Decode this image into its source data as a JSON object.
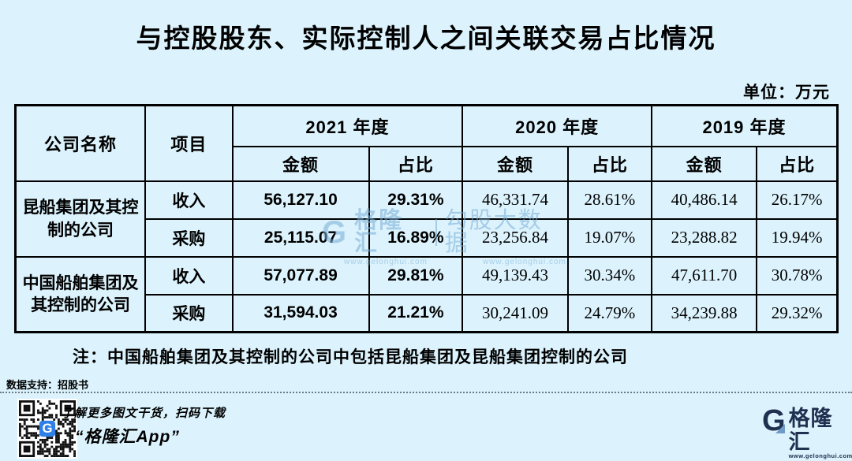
{
  "title": "与控股股东、实际控制人之间关联交易占比情况",
  "unit_label": "单位：万元",
  "table": {
    "header": {
      "company": "公司名称",
      "item": "项目",
      "years": [
        "2021 年度",
        "2020 年度",
        "2019 年度"
      ],
      "amount": "金额",
      "ratio": "占比"
    },
    "companies": [
      {
        "name": "昆船集团及其控制的公司",
        "rows": [
          {
            "item": "收入",
            "a2021": "56,127.10",
            "r2021": "29.31%",
            "a2020": "46,331.74",
            "r2020": "28.61%",
            "a2019": "40,486.14",
            "r2019": "26.17%"
          },
          {
            "item": "采购",
            "a2021": "25,115.07",
            "r2021": "16.89%",
            "a2020": "23,256.84",
            "r2020": "19.07%",
            "a2019": "23,288.82",
            "r2019": "19.94%"
          }
        ]
      },
      {
        "name": "中国船舶集团及其控制的公司",
        "rows": [
          {
            "item": "收入",
            "a2021": "57,077.89",
            "r2021": "29.81%",
            "a2020": "49,139.43",
            "r2020": "30.34%",
            "a2019": "47,611.70",
            "r2019": "30.78%"
          },
          {
            "item": "采购",
            "a2021": "31,594.03",
            "r2021": "21.21%",
            "a2020": "30,241.09",
            "r2020": "24.79%",
            "a2019": "34,239.88",
            "r2019": "29.32%"
          }
        ]
      }
    ]
  },
  "note": "注：中国船舶集团及其控制的公司中包括昆船集团及昆船集团控制的公司",
  "source": "数据支持：招股书",
  "watermark": {
    "logo_letter": "G",
    "brand": "格隆汇",
    "tagline": "勾股大数据",
    "url": "www.gelonghui.com"
  },
  "footer": {
    "caption_line1": "了解更多图文干货，扫码下载",
    "caption_line2": "“格隆汇App”",
    "brand": "格隆汇",
    "brand_url": "www.gelonghui.com",
    "logo_letter": "G"
  },
  "colors": {
    "background": "#dcf3fd",
    "border": "#000000",
    "brand_navy": "#203050",
    "qr_badge_blue": "#2e7fe8",
    "watermark_blue": "#79aed6"
  },
  "chart_data": {
    "type": "table",
    "title": "与控股股东、实际控制人之间关联交易占比情况",
    "unit": "万元",
    "columns": [
      "公司名称",
      "项目",
      "2021 年度 金额",
      "2021 年度 占比",
      "2020 年度 金额",
      "2020 年度 占比",
      "2019 年度 金额",
      "2019 年度 占比"
    ],
    "rows": [
      [
        "昆船集团及其控制的公司",
        "收入",
        56127.1,
        "29.31%",
        46331.74,
        "28.61%",
        40486.14,
        "26.17%"
      ],
      [
        "昆船集团及其控制的公司",
        "采购",
        25115.07,
        "16.89%",
        23256.84,
        "19.07%",
        23288.82,
        "19.94%"
      ],
      [
        "中国船舶集团及其控制的公司",
        "收入",
        57077.89,
        "29.81%",
        49139.43,
        "30.34%",
        47611.7,
        "30.78%"
      ],
      [
        "中国船舶集团及其控制的公司",
        "采购",
        31594.03,
        "21.21%",
        30241.09,
        "24.79%",
        34239.88,
        "29.32%"
      ]
    ],
    "note": "注：中国船舶集团及其控制的公司中包括昆船集团及昆船集团控制的公司",
    "source": "数据支持：招股书"
  }
}
